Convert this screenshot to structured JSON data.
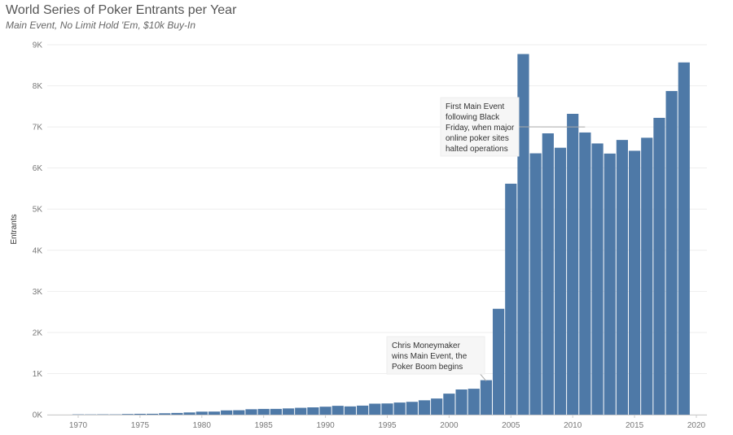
{
  "chart_data": {
    "type": "bar",
    "title": "World Series of Poker Entrants per Year",
    "subtitle": "Main Event, No Limit Hold 'Em, $10k Buy-In",
    "xlabel": "",
    "ylabel": "Entrants",
    "ylim": [
      0,
      9000
    ],
    "y_ticks": [
      0,
      1000,
      2000,
      3000,
      4000,
      5000,
      6000,
      7000,
      8000,
      9000
    ],
    "y_tick_labels": [
      "0K",
      "1K",
      "2K",
      "3K",
      "4K",
      "5K",
      "6K",
      "7K",
      "8K",
      "9K"
    ],
    "x_ticks": [
      "1970",
      "1975",
      "1980",
      "1985",
      "1990",
      "1995",
      "2000",
      "2005",
      "2010",
      "2015",
      "2020"
    ],
    "grid": true,
    "bar_color": "#4e79a7",
    "x": [
      1970,
      1971,
      1972,
      1973,
      1974,
      1975,
      1976,
      1977,
      1978,
      1979,
      1980,
      1981,
      1982,
      1983,
      1984,
      1985,
      1986,
      1987,
      1988,
      1989,
      1990,
      1991,
      1992,
      1993,
      1994,
      1995,
      1996,
      1997,
      1998,
      1999,
      2000,
      2001,
      2002,
      2003,
      2004,
      2005,
      2006,
      2007,
      2008,
      2009,
      2010,
      2011,
      2012,
      2013,
      2014,
      2015,
      2016,
      2017,
      2018,
      2019,
      2020
    ],
    "values": [
      7,
      6,
      8,
      7,
      16,
      21,
      22,
      34,
      42,
      54,
      73,
      75,
      104,
      108,
      132,
      140,
      141,
      152,
      167,
      178,
      194,
      215,
      201,
      220,
      268,
      273,
      295,
      312,
      350,
      393,
      512,
      613,
      631,
      839,
      2576,
      5619,
      8773,
      6358,
      6844,
      6494,
      7319,
      6865,
      6598,
      6352,
      6683,
      6420,
      6737,
      7221,
      7874,
      8569,
      null
    ],
    "annotations": [
      {
        "text": [
          "Chris Moneymaker",
          "wins Main Event, the",
          "Poker Boom begins"
        ],
        "year": 2003
      },
      {
        "text": [
          "First Main Event",
          "following Black",
          "Friday, when major",
          "online poker sites",
          "halted operations"
        ],
        "year": 2011
      }
    ]
  }
}
